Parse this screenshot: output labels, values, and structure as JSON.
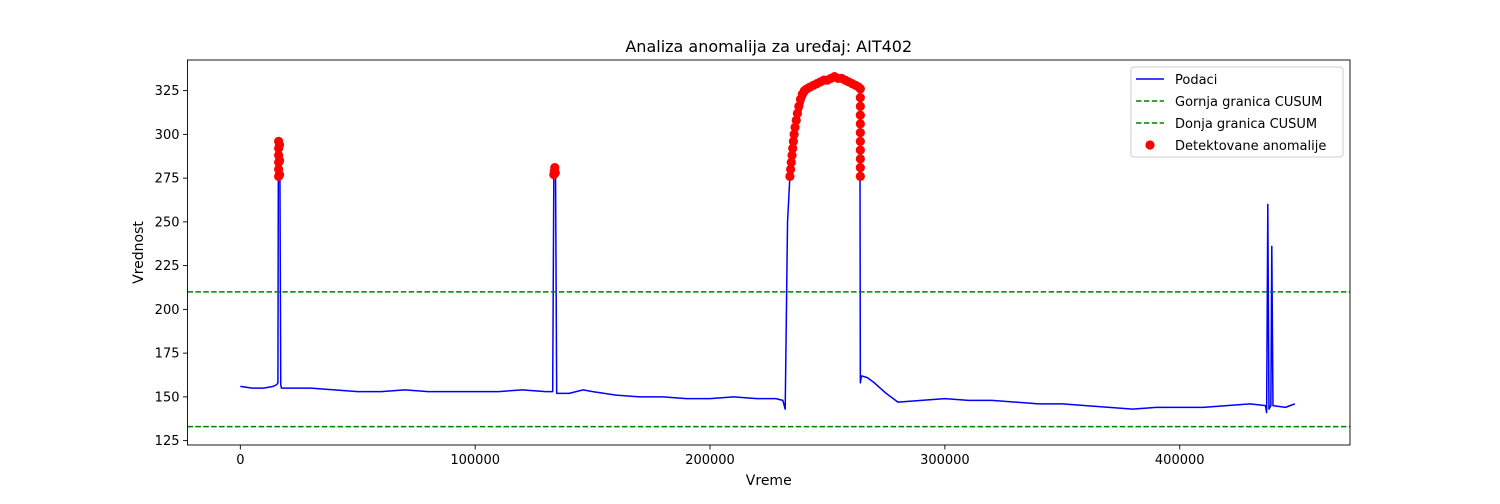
{
  "chart_data": {
    "type": "line",
    "title": "Analiza anomalija za uređaj: AIT402",
    "xlabel": "Vreme",
    "ylabel": "Vrednost",
    "xlim": [
      -22500,
      472500
    ],
    "ylim": [
      122.5,
      342.5
    ],
    "xticks": [
      0,
      100000,
      200000,
      300000,
      400000
    ],
    "xtick_labels": [
      "0",
      "100000",
      "200000",
      "300000",
      "400000"
    ],
    "yticks": [
      125,
      150,
      175,
      200,
      225,
      250,
      275,
      300,
      325
    ],
    "ytick_labels": [
      "125",
      "150",
      "175",
      "200",
      "225",
      "250",
      "275",
      "300",
      "325"
    ],
    "grid": false,
    "legend_position": "top-right",
    "series": [
      {
        "name": "Podaci",
        "kind": "line",
        "color": "#0000ff",
        "points": [
          [
            0,
            156
          ],
          [
            5000,
            155
          ],
          [
            10000,
            155
          ],
          [
            14000,
            156
          ],
          [
            15500,
            157
          ],
          [
            16000,
            158
          ],
          [
            16200,
            295
          ],
          [
            16800,
            296
          ],
          [
            17200,
            157
          ],
          [
            17500,
            155
          ],
          [
            20000,
            155
          ],
          [
            25000,
            155
          ],
          [
            30000,
            155
          ],
          [
            40000,
            154
          ],
          [
            50000,
            153
          ],
          [
            60000,
            153
          ],
          [
            70000,
            154
          ],
          [
            80000,
            153
          ],
          [
            90000,
            153
          ],
          [
            100000,
            153
          ],
          [
            110000,
            153
          ],
          [
            120000,
            154
          ],
          [
            130000,
            153
          ],
          [
            133000,
            153
          ],
          [
            133500,
            280
          ],
          [
            134200,
            280
          ],
          [
            134700,
            152
          ],
          [
            140000,
            152
          ],
          [
            146000,
            154
          ],
          [
            150000,
            153
          ],
          [
            160000,
            151
          ],
          [
            170000,
            150
          ],
          [
            180000,
            150
          ],
          [
            190000,
            149
          ],
          [
            200000,
            149
          ],
          [
            210000,
            150
          ],
          [
            220000,
            149
          ],
          [
            228000,
            149
          ],
          [
            231000,
            148
          ],
          [
            232000,
            143
          ],
          [
            233000,
            250
          ],
          [
            234000,
            276
          ],
          [
            236000,
            296
          ],
          [
            238000,
            310
          ],
          [
            240000,
            320
          ],
          [
            242000,
            325
          ],
          [
            245000,
            328
          ],
          [
            248000,
            330
          ],
          [
            251000,
            331
          ],
          [
            254000,
            332
          ],
          [
            257000,
            331
          ],
          [
            260000,
            329
          ],
          [
            263000,
            326
          ],
          [
            263800,
            325
          ],
          [
            264000,
            158
          ],
          [
            264500,
            162
          ],
          [
            267000,
            161
          ],
          [
            270000,
            158
          ],
          [
            275000,
            152
          ],
          [
            280000,
            147
          ],
          [
            290000,
            148
          ],
          [
            300000,
            149
          ],
          [
            310000,
            148
          ],
          [
            320000,
            148
          ],
          [
            330000,
            147
          ],
          [
            340000,
            146
          ],
          [
            350000,
            146
          ],
          [
            360000,
            145
          ],
          [
            370000,
            144
          ],
          [
            380000,
            143
          ],
          [
            390000,
            144
          ],
          [
            400000,
            144
          ],
          [
            410000,
            144
          ],
          [
            420000,
            145
          ],
          [
            430000,
            146
          ],
          [
            436500,
            145
          ],
          [
            437000,
            141
          ],
          [
            437500,
            260
          ],
          [
            438000,
            143
          ],
          [
            438800,
            145
          ],
          [
            439200,
            236
          ],
          [
            439700,
            145
          ],
          [
            445000,
            144
          ],
          [
            449000,
            146
          ]
        ]
      },
      {
        "name": "Gornja granica CUSUM",
        "kind": "hline",
        "y": 210,
        "color": "#008000",
        "style": "dashed"
      },
      {
        "name": "Donja granica CUSUM",
        "kind": "hline",
        "y": 133,
        "color": "#008000",
        "style": "dashed"
      },
      {
        "name": "Detektovane anomalije",
        "kind": "scatter",
        "color": "#ff0000",
        "points": [
          [
            16300,
            276
          ],
          [
            16300,
            280
          ],
          [
            16300,
            284
          ],
          [
            16300,
            288
          ],
          [
            16300,
            292
          ],
          [
            16300,
            296
          ],
          [
            16700,
            277
          ],
          [
            16700,
            285
          ],
          [
            16700,
            294
          ],
          [
            133500,
            277
          ],
          [
            133700,
            279
          ],
          [
            133900,
            281
          ],
          [
            134100,
            278
          ],
          [
            234000,
            276
          ],
          [
            234300,
            280
          ],
          [
            234600,
            284
          ],
          [
            234900,
            288
          ],
          [
            235200,
            292
          ],
          [
            235500,
            296
          ],
          [
            235800,
            300
          ],
          [
            236200,
            304
          ],
          [
            236700,
            308
          ],
          [
            237200,
            312
          ],
          [
            237800,
            316
          ],
          [
            238500,
            320
          ],
          [
            239300,
            323
          ],
          [
            240200,
            325
          ],
          [
            241200,
            326
          ],
          [
            242500,
            327
          ],
          [
            244000,
            328
          ],
          [
            245500,
            329
          ],
          [
            247000,
            330
          ],
          [
            248500,
            331
          ],
          [
            250000,
            331
          ],
          [
            251500,
            332
          ],
          [
            253000,
            333
          ],
          [
            254500,
            332
          ],
          [
            256000,
            332
          ],
          [
            257500,
            331
          ],
          [
            259000,
            330
          ],
          [
            260500,
            329
          ],
          [
            262000,
            328
          ],
          [
            263300,
            327
          ],
          [
            264000,
            276
          ],
          [
            264000,
            281
          ],
          [
            264000,
            286
          ],
          [
            264000,
            291
          ],
          [
            264000,
            296
          ],
          [
            264000,
            301
          ],
          [
            264000,
            306
          ],
          [
            264000,
            311
          ],
          [
            264000,
            316
          ],
          [
            264000,
            321
          ],
          [
            264000,
            326
          ]
        ]
      }
    ]
  }
}
